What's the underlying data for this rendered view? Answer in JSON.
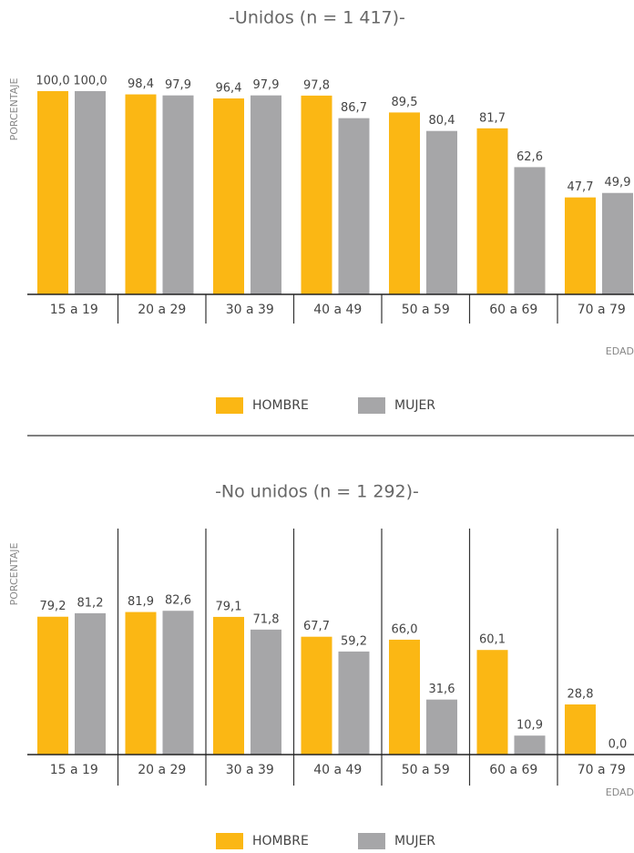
{
  "chart_data": [
    {
      "type": "bar",
      "title": "-Unidos (n = 1 417)-",
      "y_label": "PORCENTAJE",
      "x_label": "EDAD",
      "categories": [
        "15 a 19",
        "20 a 29",
        "30 a 39",
        "40 a 49",
        "50 a 59",
        "60 a 69",
        "70 a 79"
      ],
      "ylim": [
        0,
        100
      ],
      "series": [
        {
          "name": "HOMBRE",
          "color": "#fbb714",
          "values": [
            100.0,
            98.4,
            96.4,
            97.8,
            89.5,
            81.7,
            47.7
          ],
          "value_labels": [
            "100,0",
            "98,4",
            "96,4",
            "97,8",
            "89,5",
            "81,7",
            "47,7"
          ]
        },
        {
          "name": "MUJER",
          "color": "#a6a6a8",
          "values": [
            100.0,
            97.9,
            97.9,
            86.7,
            80.4,
            62.6,
            49.9
          ],
          "value_labels": [
            "100,0",
            "97,9",
            "97,9",
            "86,7",
            "80,4",
            "62,6",
            "49,9"
          ]
        }
      ]
    },
    {
      "type": "bar",
      "title": "-No unidos (n = 1 292)-",
      "y_label": "PORCENTAJE",
      "x_label": "EDAD",
      "categories": [
        "15 a 19",
        "20 a 29",
        "30 a 39",
        "40 a 49",
        "50 a 59",
        "60 a 69",
        "70 a 79"
      ],
      "ylim": [
        0,
        100
      ],
      "series": [
        {
          "name": "HOMBRE",
          "color": "#fbb714",
          "values": [
            79.2,
            81.9,
            79.1,
            67.7,
            66.0,
            60.1,
            28.8
          ],
          "value_labels": [
            "79,2",
            "81,9",
            "79,1",
            "67,7",
            "66,0",
            "60,1",
            "28,8"
          ]
        },
        {
          "name": "MUJER",
          "color": "#a6a6a8",
          "values": [
            81.2,
            82.6,
            71.8,
            59.2,
            31.6,
            10.9,
            0.0
          ],
          "value_labels": [
            "81,2",
            "82,6",
            "71,8",
            "59,2",
            "31,6",
            "10,9",
            "0,0"
          ]
        }
      ]
    }
  ]
}
